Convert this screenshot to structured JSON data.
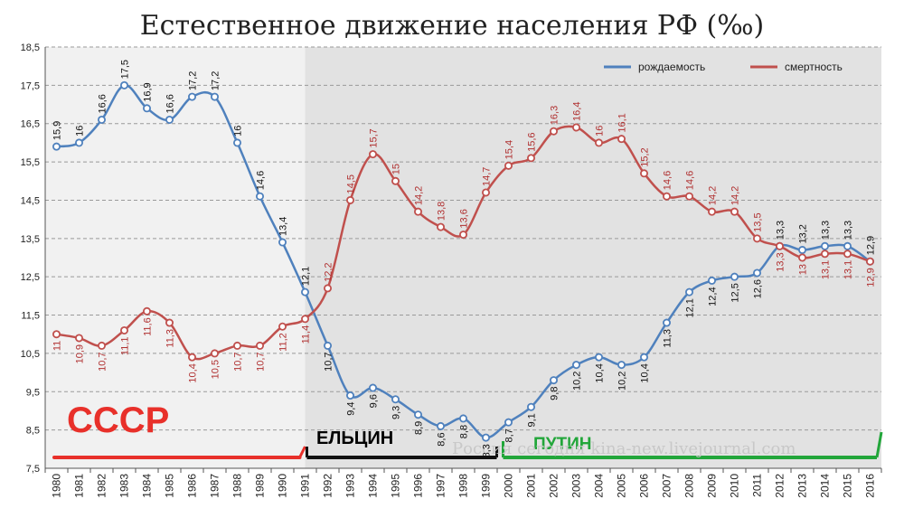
{
  "chart_data": {
    "type": "line",
    "title": "Естественное движение населения РФ (‰)",
    "x": [
      1980,
      1981,
      1982,
      1983,
      1984,
      1985,
      1986,
      1987,
      1988,
      1989,
      1990,
      1991,
      1992,
      1993,
      1994,
      1995,
      1996,
      1997,
      1998,
      1999,
      2000,
      2001,
      2002,
      2003,
      2004,
      2005,
      2006,
      2007,
      2008,
      2009,
      2010,
      2011,
      2012,
      2013,
      2014,
      2015,
      2016
    ],
    "ylim": [
      7.5,
      18.5
    ],
    "yticks": [
      "7,5",
      "8,5",
      "9,5",
      "10,5",
      "11,5",
      "12,5",
      "13,5",
      "14,5",
      "15,5",
      "16,5",
      "17,5",
      "18,5"
    ],
    "grid": true,
    "legend": "top-right",
    "series": [
      {
        "name": "рождаемость",
        "color": "#4f81bd",
        "values": [
          15.9,
          16,
          16.6,
          17.5,
          16.9,
          16.6,
          17.2,
          17.2,
          16,
          14.6,
          13.4,
          12.1,
          10.7,
          9.4,
          9.6,
          9.3,
          8.9,
          8.6,
          8.8,
          8.3,
          8.7,
          9.1,
          9.8,
          10.2,
          10.4,
          10.2,
          10.4,
          11.3,
          12.1,
          12.4,
          12.5,
          12.6,
          13.3,
          13.2,
          13.3,
          13.3,
          12.9
        ],
        "labels": [
          "15,9",
          "16",
          "16,6",
          "17,5",
          "16,9",
          "16,6",
          "17,2",
          "17,2",
          "16",
          "14,6",
          "13,4",
          "12,1",
          "10,7",
          "9,4",
          "9,6",
          "9,3",
          "8,9",
          "8,6",
          "8,8",
          "8,3",
          "8,7",
          "9,1",
          "9,8",
          "10,2",
          "10,4",
          "10,2",
          "10,4",
          "11,3",
          "12,1",
          "12,4",
          "12,5",
          "12,6",
          "13,3",
          "13,2",
          "13,3",
          "13,3",
          "12,9"
        ]
      },
      {
        "name": "смертность",
        "color": "#c0504d",
        "values": [
          11,
          10.9,
          10.7,
          11.1,
          11.6,
          11.3,
          10.4,
          10.5,
          10.7,
          10.7,
          11.2,
          11.4,
          12.2,
          14.5,
          15.7,
          15,
          14.2,
          13.8,
          13.6,
          14.7,
          15.4,
          15.6,
          16.3,
          16.4,
          16,
          16.1,
          15.2,
          14.6,
          14.6,
          14.2,
          14.2,
          13.5,
          13.3,
          13,
          13.1,
          13.1,
          12.9
        ],
        "labels": [
          "11",
          "10,9",
          "10,7",
          "11,1",
          "11,6",
          "11,3",
          "10,4",
          "10,5",
          "10,7",
          "10,7",
          "11,2",
          "11,4",
          "12,2",
          "14,5",
          "15,7",
          "15",
          "14,2",
          "13,8",
          "13,6",
          "14,7",
          "15,4",
          "15,6",
          "16,3",
          "16,4",
          "16",
          "16,1",
          "15,2",
          "14,6",
          "14,6",
          "14,2",
          "14,2",
          "13,5",
          "13,3",
          "13",
          "13,1",
          "13,1",
          "12,9"
        ]
      }
    ],
    "eras": [
      {
        "label": "СССР",
        "from": 1980,
        "to": 1991,
        "color": "#e8302a"
      },
      {
        "label": "ЕЛЬЦИН",
        "from": 1991,
        "to": 1999,
        "color": "#111111"
      },
      {
        "label": "ПУТИН",
        "from": 2000,
        "to": 2016,
        "color": "#22a63a"
      }
    ],
    "watermark": "Россия сегодня kina-new.livejournal.com"
  }
}
